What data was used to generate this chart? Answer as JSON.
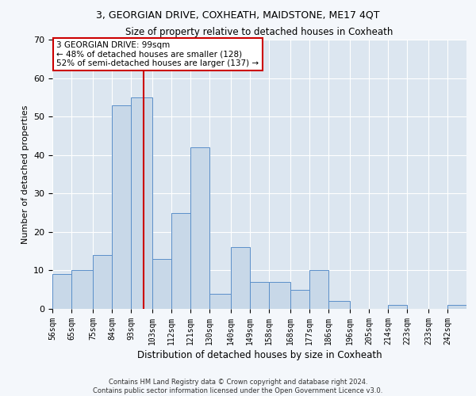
{
  "title1": "3, GEORGIAN DRIVE, COXHEATH, MAIDSTONE, ME17 4QT",
  "title2": "Size of property relative to detached houses in Coxheath",
  "xlabel": "Distribution of detached houses by size in Coxheath",
  "ylabel": "Number of detached properties",
  "categories": [
    "56sqm",
    "65sqm",
    "75sqm",
    "84sqm",
    "93sqm",
    "103sqm",
    "112sqm",
    "121sqm",
    "130sqm",
    "140sqm",
    "149sqm",
    "158sqm",
    "168sqm",
    "177sqm",
    "186sqm",
    "196sqm",
    "205sqm",
    "214sqm",
    "223sqm",
    "233sqm",
    "242sqm"
  ],
  "values": [
    9,
    10,
    14,
    53,
    55,
    13,
    25,
    42,
    4,
    16,
    7,
    7,
    5,
    10,
    2,
    0,
    0,
    1,
    0,
    0,
    1
  ],
  "bar_color": "#c8d8e8",
  "bar_edge_color": "#5b8fc9",
  "vline_x": 99,
  "bin_edges": [
    56,
    65,
    75,
    84,
    93,
    103,
    112,
    121,
    130,
    140,
    149,
    158,
    168,
    177,
    186,
    196,
    205,
    214,
    223,
    233,
    242,
    251
  ],
  "annotation_text": "3 GEORGIAN DRIVE: 99sqm\n← 48% of detached houses are smaller (128)\n52% of semi-detached houses are larger (137) →",
  "annotation_box_color": "#ffffff",
  "annotation_box_edge": "#cc0000",
  "ylim": [
    0,
    70
  ],
  "yticks": [
    0,
    10,
    20,
    30,
    40,
    50,
    60,
    70
  ],
  "background_color": "#dce6f0",
  "fig_background_color": "#f4f7fb",
  "grid_color": "#ffffff",
  "footer1": "Contains HM Land Registry data © Crown copyright and database right 2024.",
  "footer2": "Contains public sector information licensed under the Open Government Licence v3.0.",
  "vline_color": "#cc0000",
  "title1_fontsize": 9,
  "title2_fontsize": 8.5,
  "ylabel_fontsize": 8,
  "xlabel_fontsize": 8.5,
  "tick_fontsize": 7,
  "annotation_fontsize": 7.5,
  "footer_fontsize": 6
}
